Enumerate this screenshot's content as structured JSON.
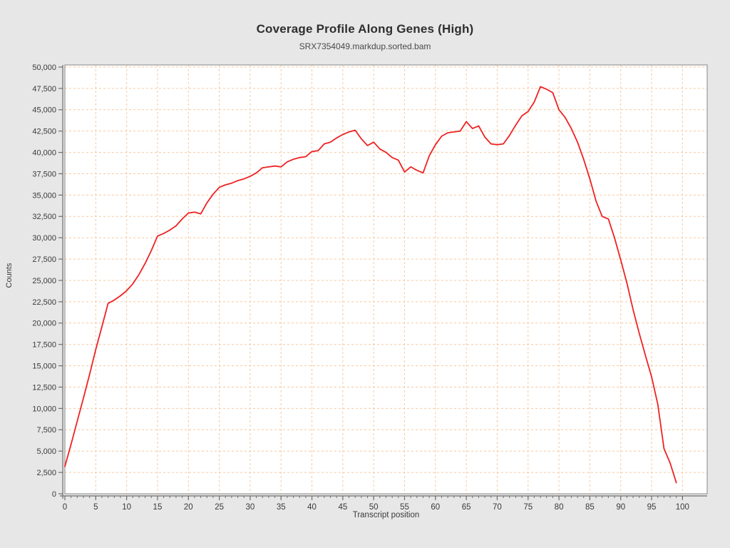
{
  "header": {
    "title": "Coverage Profile Along Genes (High)",
    "subtitle": "SRX7354049.markdup.sorted.bam"
  },
  "axes": {
    "x_label": "Transcript position",
    "y_label": "Counts"
  },
  "colors": {
    "page_bg": "#e7e7e7",
    "plot_bg": "#ffffff",
    "grid": "#f6c9a0",
    "border": "#999999",
    "axis": "#6e6e6e",
    "tick_text": "#3a3a3a",
    "line": "#ee2222"
  },
  "chart_data": {
    "type": "line",
    "title": "Coverage Profile Along Genes (High)",
    "subtitle": "SRX7354049.markdup.sorted.bam",
    "xlabel": "Transcript position",
    "ylabel": "Counts",
    "xlim": [
      0,
      104
    ],
    "ylim": [
      0,
      50000
    ],
    "grid": true,
    "legend": "none",
    "x_major_ticks": [
      0,
      5,
      10,
      15,
      20,
      25,
      30,
      35,
      40,
      45,
      50,
      55,
      60,
      65,
      70,
      75,
      80,
      85,
      90,
      95,
      100
    ],
    "x_minor_tick_step": 1,
    "y_ticks": [
      0,
      2500,
      5000,
      7500,
      10000,
      12500,
      15000,
      17500,
      20000,
      22500,
      25000,
      27500,
      30000,
      32500,
      35000,
      37500,
      40000,
      42500,
      45000,
      47500,
      50000
    ],
    "series": [
      {
        "name": "SRX7354049.markdup.sorted.bam",
        "x": [
          0,
          1,
          2,
          3,
          4,
          5,
          6,
          7,
          8,
          9,
          10,
          11,
          12,
          13,
          14,
          15,
          16,
          17,
          18,
          19,
          20,
          21,
          22,
          23,
          24,
          25,
          26,
          27,
          28,
          29,
          30,
          31,
          32,
          33,
          34,
          35,
          36,
          37,
          38,
          39,
          40,
          41,
          42,
          43,
          44,
          45,
          46,
          47,
          48,
          49,
          50,
          51,
          52,
          53,
          54,
          55,
          56,
          57,
          58,
          59,
          60,
          61,
          62,
          63,
          64,
          65,
          66,
          67,
          68,
          69,
          70,
          71,
          72,
          73,
          74,
          75,
          76,
          77,
          78,
          79,
          80,
          81,
          82,
          83,
          84,
          85,
          86,
          87,
          88,
          89,
          90,
          91,
          92,
          93,
          94,
          95,
          96,
          97,
          98,
          99
        ],
        "values": [
          3200,
          5800,
          8500,
          11200,
          14000,
          16900,
          19600,
          22300,
          22700,
          23200,
          23800,
          24600,
          25700,
          27000,
          28500,
          30200,
          30500,
          30900,
          31400,
          32200,
          32900,
          33000,
          32800,
          34100,
          35100,
          35900,
          36200,
          36400,
          36700,
          36900,
          37200,
          37600,
          38200,
          38300,
          38400,
          38300,
          38900,
          39200,
          39400,
          39500,
          40100,
          40200,
          41000,
          41200,
          41700,
          42100,
          42400,
          42600,
          41600,
          40800,
          41200,
          40400,
          40000,
          39400,
          39100,
          37700,
          38300,
          37900,
          37600,
          39600,
          40900,
          41900,
          42300,
          42400,
          42500,
          43600,
          42800,
          43100,
          41800,
          41000,
          40900,
          41000,
          42000,
          43200,
          44300,
          44800,
          45900,
          47700,
          47400,
          47000,
          45000,
          44100,
          42800,
          41200,
          39200,
          36900,
          34300,
          32500,
          32200,
          30000,
          27400,
          24700,
          21600,
          18800,
          16200,
          13700,
          10500,
          5300,
          3600,
          1300
        ]
      }
    ]
  }
}
